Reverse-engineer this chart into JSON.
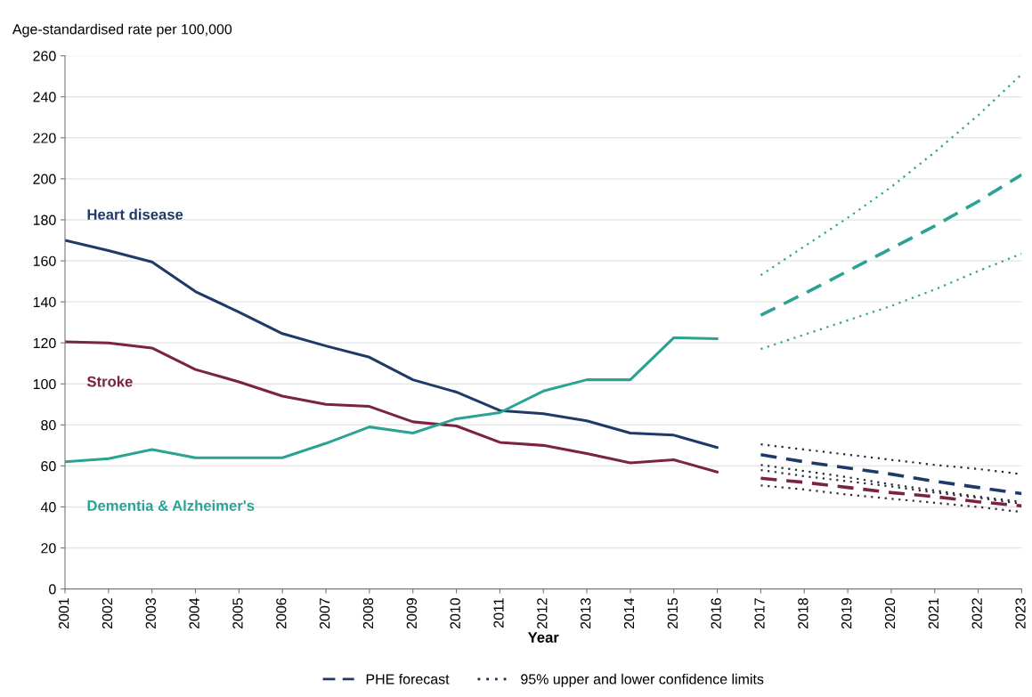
{
  "chart_data": {
    "type": "line",
    "ylabel": "Age-standardised rate per 100,000",
    "xlabel": "Year",
    "xlim": [
      2001,
      2023
    ],
    "xticks": [
      2001,
      2002,
      2003,
      2004,
      2005,
      2006,
      2007,
      2008,
      2009,
      2010,
      2011,
      2012,
      2013,
      2014,
      2015,
      2016,
      2017,
      2018,
      2019,
      2020,
      2021,
      2022,
      2023
    ],
    "ylim": [
      0,
      260
    ],
    "yticks": [
      0,
      20,
      40,
      60,
      80,
      100,
      120,
      140,
      160,
      180,
      200,
      220,
      240,
      260
    ],
    "grid": "y",
    "legend": "bottom",
    "marker": "none",
    "series": [
      {
        "name": "Heart disease",
        "color": "#1f3a68",
        "line_style": "solid",
        "x": [
          2001,
          2002,
          2003,
          2004,
          2005,
          2006,
          2007,
          2008,
          2009,
          2010,
          2011,
          2012,
          2013,
          2014,
          2015,
          2016
        ],
        "values": [
          170,
          165,
          159.5,
          145,
          135,
          124.5,
          118.5,
          113,
          102,
          96,
          87,
          85.5,
          82,
          76,
          75,
          69
        ]
      },
      {
        "name": "Stroke",
        "color": "#7a2342",
        "line_style": "solid",
        "x": [
          2001,
          2002,
          2003,
          2004,
          2005,
          2006,
          2007,
          2008,
          2009,
          2010,
          2011,
          2012,
          2013,
          2014,
          2015,
          2016
        ],
        "values": [
          120.5,
          120,
          117.5,
          107,
          101,
          94,
          90,
          89,
          81.5,
          79.5,
          71.5,
          70,
          66,
          61.5,
          63,
          57
        ]
      },
      {
        "name": "Dementia & Alzheimer's",
        "color": "#2aa395",
        "line_style": "solid",
        "x": [
          2001,
          2002,
          2003,
          2004,
          2005,
          2006,
          2007,
          2008,
          2009,
          2010,
          2011,
          2012,
          2013,
          2014,
          2015,
          2016
        ],
        "values": [
          62,
          63.5,
          68,
          64,
          64,
          64,
          71,
          79,
          76,
          83,
          86,
          96.5,
          102,
          102,
          122.5,
          122
        ]
      },
      {
        "name": "PHE forecast",
        "color": "#1f3a68",
        "line_style": "dashed",
        "x": [
          2017,
          2018,
          2019,
          2020,
          2021,
          2022,
          2023
        ],
        "values": [
          65.5,
          62,
          59,
          56,
          52.5,
          49.5,
          46.5
        ]
      },
      {
        "color": "#7a2342",
        "line_style": "dashed",
        "x": [
          2017,
          2018,
          2019,
          2020,
          2021,
          2022,
          2023
        ],
        "values": [
          54,
          52,
          49.5,
          47,
          45,
          42.5,
          40.5
        ]
      },
      {
        "color": "#2aa395",
        "line_style": "dashed",
        "x": [
          2017,
          2018,
          2019,
          2020,
          2021,
          2022,
          2023
        ],
        "values": [
          133.5,
          144,
          155,
          166,
          177,
          189,
          202
        ]
      },
      {
        "name": "95% upper and lower confidence limits",
        "color": "#1f2a44",
        "line_style": "dotted",
        "x": [
          2017,
          2018,
          2019,
          2020,
          2021,
          2022,
          2023
        ],
        "values": [
          70.5,
          68,
          65.5,
          63,
          60.5,
          58.5,
          56
        ]
      },
      {
        "color": "#1f2a44",
        "line_style": "dotted",
        "x": [
          2017,
          2018,
          2019,
          2020,
          2021,
          2022,
          2023
        ],
        "values": [
          60.5,
          57.5,
          54.5,
          51,
          48,
          45,
          42.5
        ]
      },
      {
        "color": "#3a2a3a",
        "line_style": "dotted",
        "x": [
          2017,
          2018,
          2019,
          2020,
          2021,
          2022,
          2023
        ],
        "values": [
          58,
          55,
          52.5,
          50,
          47,
          44.5,
          41.5
        ]
      },
      {
        "color": "#3a2a3a",
        "line_style": "dotted",
        "x": [
          2017,
          2018,
          2019,
          2020,
          2021,
          2022,
          2023
        ],
        "values": [
          50.5,
          48.5,
          46,
          44,
          42,
          40,
          37.5
        ]
      },
      {
        "color": "#2aa395",
        "line_style": "dotted",
        "x": [
          2017,
          2018,
          2019,
          2020,
          2021,
          2022,
          2023
        ],
        "values": [
          153,
          167,
          181,
          196,
          213,
          231,
          251
        ]
      },
      {
        "color": "#2aa395",
        "line_style": "dotted",
        "x": [
          2017,
          2018,
          2019,
          2020,
          2021,
          2022,
          2023
        ],
        "values": [
          117,
          124,
          131,
          138,
          146,
          155,
          163.5
        ]
      }
    ]
  }
}
